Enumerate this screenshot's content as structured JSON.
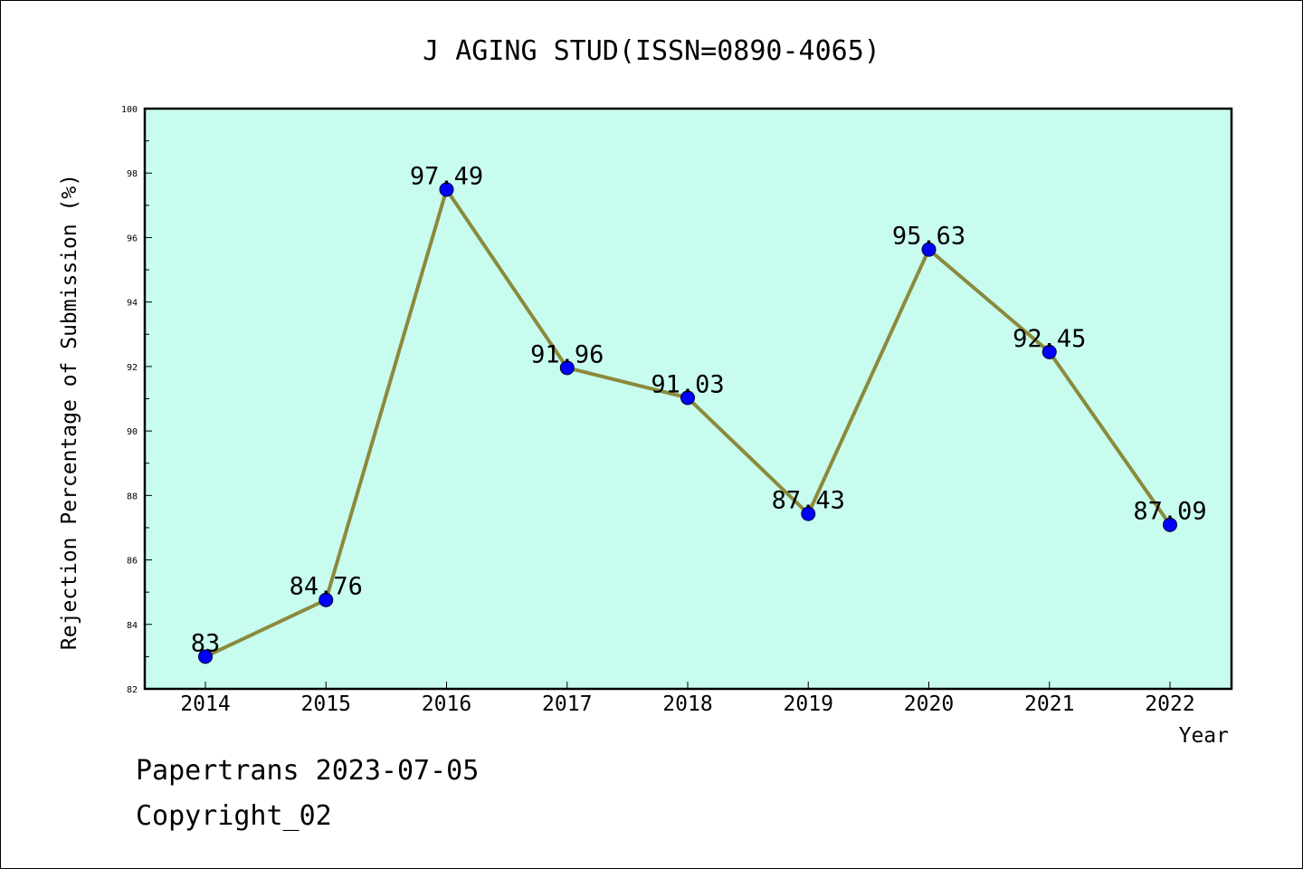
{
  "chart_data": {
    "type": "line",
    "title": "J AGING STUD(ISSN=0890-4065)",
    "xlabel": "Year",
    "ylabel": "Rejection Percentage of Submission (%)",
    "categories": [
      "2014",
      "2015",
      "2016",
      "2017",
      "2018",
      "2019",
      "2020",
      "2021",
      "2022"
    ],
    "values": [
      83,
      84.76,
      97.49,
      91.96,
      91.03,
      87.43,
      95.63,
      92.45,
      87.09
    ],
    "data_labels": [
      "83",
      "84.76",
      "97.49",
      "91.96",
      "91.03",
      "87.43",
      "95.63",
      "92.45",
      "87.09"
    ],
    "ylim": [
      82,
      100
    ],
    "yticks": [
      82,
      84,
      86,
      88,
      90,
      92,
      94,
      96,
      98,
      100
    ],
    "grid": false,
    "colors": {
      "plot_background": "#c8fcee",
      "line": "#8b8a3c",
      "marker": "#0000ff"
    }
  },
  "footer": {
    "line1": "Papertrans 2023-07-05",
    "line2": "Copyright_02"
  }
}
